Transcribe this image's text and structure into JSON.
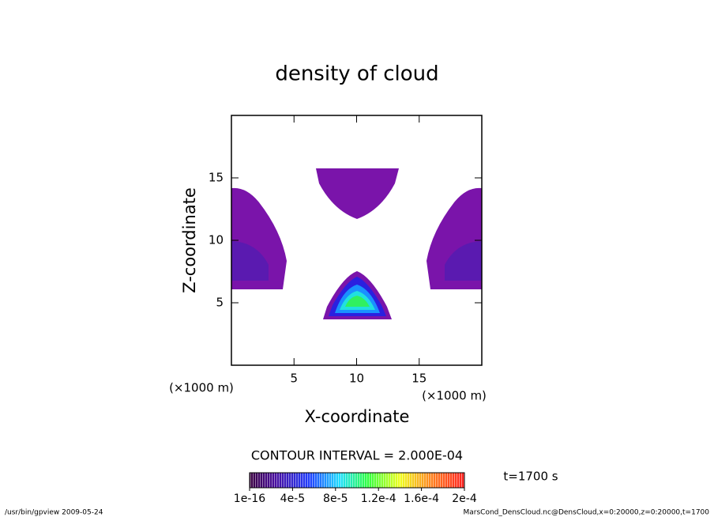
{
  "chart_data": {
    "type": "contour",
    "title": "density of cloud",
    "x_label": "X-coordinate",
    "y_label": "Z-coordinate",
    "x_units": "(×1000 m)",
    "y_units": "(×1000 m)",
    "xlim": [
      0,
      20
    ],
    "ylim": [
      0,
      20
    ],
    "xticks": [
      5,
      10,
      15
    ],
    "yticks": [
      5,
      10,
      15
    ],
    "contour_interval": "CONTOUR INTERVAL = 2.000E-04",
    "time": "t=1700 s",
    "colorbar_lim": [
      1e-16,
      0.0002
    ],
    "colorbar_ticks": [
      {
        "value": 1e-16,
        "label": "1e-16"
      },
      {
        "value": 4e-05,
        "label": "4e-5"
      },
      {
        "value": 8e-05,
        "label": "8e-5"
      },
      {
        "value": 0.00012,
        "label": "1.2e-4"
      },
      {
        "value": 0.00016,
        "label": "1.6e-4"
      },
      {
        "value": 0.0002,
        "label": "2e-4"
      }
    ],
    "footer_left": "/usr/bin/gpview  2009-05-24",
    "footer_right": "MarsCond_DensCloud.nc@DensCloud,x=0:20000,z=0:20000,t=1700"
  }
}
